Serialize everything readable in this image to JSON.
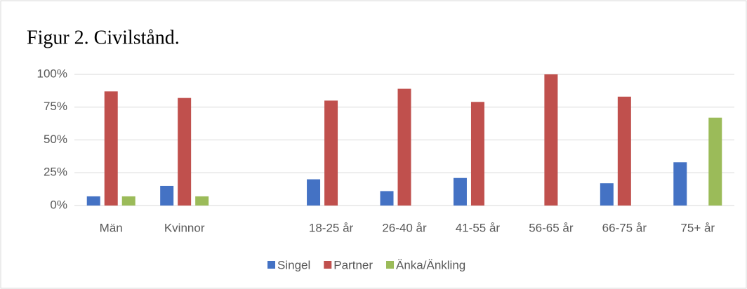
{
  "chart_data": {
    "type": "bar",
    "title": "Figur 2. Civilstånd.",
    "categories": [
      "Män",
      "Kvinnor",
      null,
      "18-25 år",
      "26-40 år",
      "41-55 år",
      "56-65 år",
      "66-75 år",
      "75+ år"
    ],
    "series": [
      {
        "name": "Singel",
        "color": "#4472c4",
        "values": [
          7,
          15,
          null,
          20,
          11,
          21,
          0,
          17,
          33
        ]
      },
      {
        "name": "Partner",
        "color": "#c0504d",
        "values": [
          87,
          82,
          null,
          80,
          89,
          79,
          100,
          83,
          0
        ]
      },
      {
        "name": "Änka/Änkling",
        "color": "#9bbb59",
        "values": [
          7,
          7,
          null,
          0,
          0,
          0,
          0,
          0,
          67
        ]
      }
    ],
    "ylim": [
      0,
      100
    ],
    "yticks": [
      {
        "value": 0,
        "label": "0%"
      },
      {
        "value": 25,
        "label": "25%"
      },
      {
        "value": 50,
        "label": "50%"
      },
      {
        "value": 75,
        "label": "75%"
      },
      {
        "value": 100,
        "label": "100%"
      }
    ],
    "grid": true,
    "legend": "bottom"
  }
}
